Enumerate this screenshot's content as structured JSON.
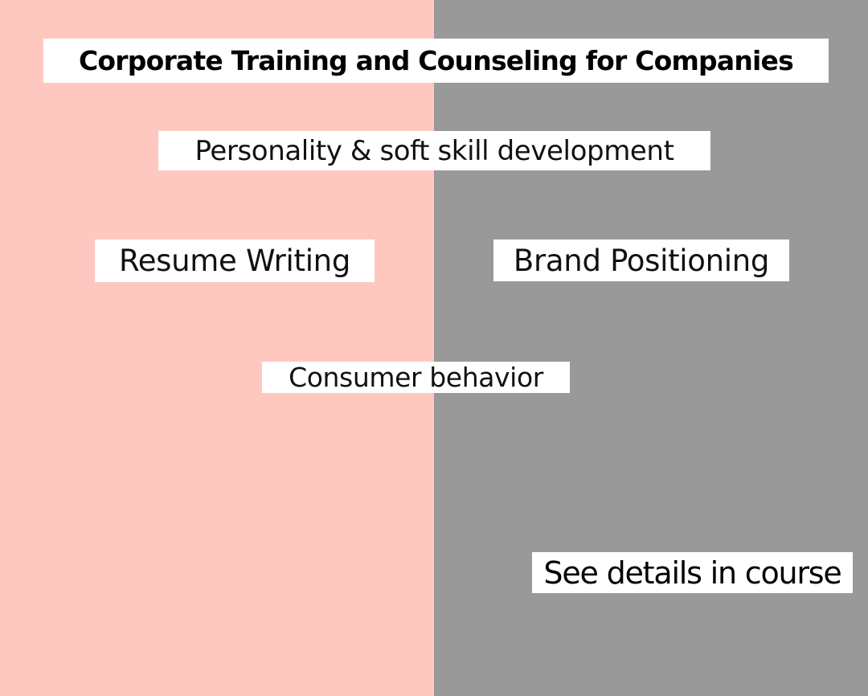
{
  "colors": {
    "left_panel": "#fec8c0",
    "right_panel": "#999999",
    "label_background": "#ffffff"
  },
  "title": "Corporate Training and Counseling for Companies",
  "topics": {
    "personality": "Personality & soft skill development",
    "resume": "Resume Writing",
    "brand": "Brand Positioning",
    "consumer": "Consumer behavior"
  },
  "cta": "See details in course"
}
